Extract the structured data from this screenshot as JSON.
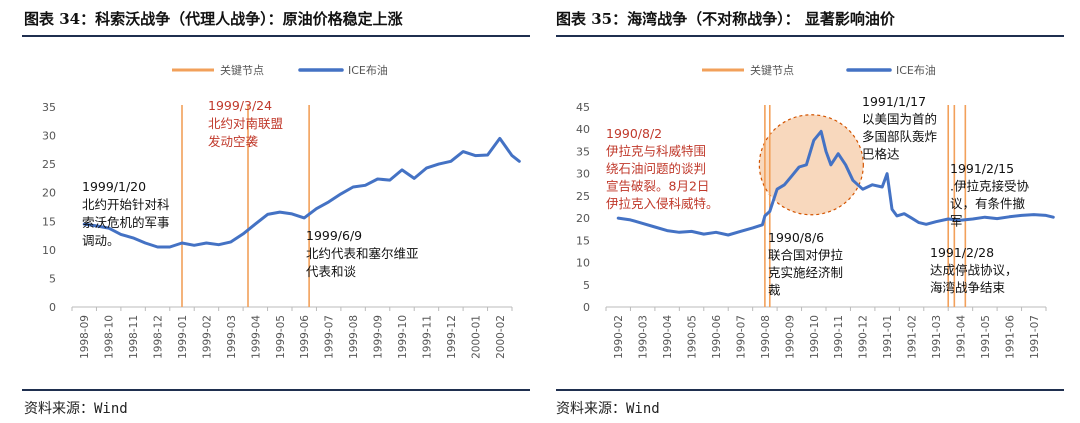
{
  "figures": [
    {
      "title": "图表 34：科索沃战争（代理人战争）：原油价格稳定上涨",
      "source": "资料来源：Wind"
    },
    {
      "title": "图表 35：海湾战争（不对称战争）： 显著影响油价",
      "source": "资料来源：Wind"
    }
  ],
  "colors": {
    "key_node": "#f2a05a",
    "ice_line": "#4472c4",
    "annotation_red": "#c0392b",
    "circle_fill": "#f5cba7",
    "circle_stroke": "#d35400",
    "rule": "#1f2f4f"
  },
  "chart_data": [
    {
      "type": "line",
      "legend": [
        "关键节点",
        "ICE布油"
      ],
      "legend_position": "top-center",
      "x_ticks": [
        "1998-09",
        "1998-10",
        "1998-11",
        "1998-12",
        "1999-01",
        "1999-02",
        "1999-03",
        "1999-04",
        "1999-05",
        "1999-06",
        "1999-07",
        "1999-08",
        "1999-09",
        "1999-10",
        "1999-11",
        "1999-12",
        "2000-01",
        "2000-02"
      ],
      "ylim": [
        0,
        35
      ],
      "y_ticks": [
        0,
        5,
        10,
        15,
        20,
        25,
        30,
        35
      ],
      "grid": false,
      "series": [
        {
          "name": "ICE布油",
          "x": [
            0,
            0.5,
            1,
            1.5,
            2,
            2.5,
            3,
            3.5,
            4,
            4.5,
            5,
            5.5,
            6,
            6.5,
            7,
            7.5,
            8,
            8.5,
            9,
            9.5,
            10,
            10.5,
            11,
            11.5,
            12,
            12.5,
            13,
            13.5,
            14,
            14.5,
            15,
            15.5,
            16,
            16.5,
            17,
            17.5,
            17.8
          ],
          "values": [
            14.5,
            14.2,
            13.8,
            12.7,
            12.1,
            11.2,
            10.5,
            10.5,
            11.2,
            10.8,
            11.2,
            10.9,
            11.4,
            12.8,
            14.5,
            16.2,
            16.6,
            16.3,
            15.6,
            17.2,
            18.4,
            19.8,
            21.0,
            21.3,
            22.4,
            22.2,
            24.0,
            22.5,
            24.3,
            25.0,
            25.5,
            27.2,
            26.5,
            26.6,
            29.5,
            26.5,
            25.5
          ]
        }
      ],
      "key_nodes": [
        4.0,
        6.7,
        9.2
      ],
      "annotations": [
        {
          "lines": [
            "1999/3/24",
            "北约对南联盟",
            "发动空袭"
          ],
          "color": "red"
        },
        {
          "lines": [
            "1999/1/20",
            "北约开始针对科",
            "索沃危机的军事",
            "调动。"
          ],
          "color": "black"
        },
        {
          "lines": [
            "1999/6/9",
            "北约代表和塞尔维亚",
            "代表和谈"
          ],
          "color": "black"
        }
      ]
    },
    {
      "type": "line",
      "legend": [
        "关键节点",
        "ICE布油"
      ],
      "legend_position": "top-center",
      "x_ticks": [
        "1990-02",
        "1990-03",
        "1990-04",
        "1990-05",
        "1990-06",
        "1990-07",
        "1990-08",
        "1990-09",
        "1990-10",
        "1990-11",
        "1990-12",
        "1991-01",
        "1991-02",
        "1991-03",
        "1991-04",
        "1991-05",
        "1991-06",
        "1991-07"
      ],
      "ylim": [
        0,
        45
      ],
      "y_ticks": [
        0,
        5,
        10,
        15,
        20,
        25,
        30,
        35,
        40,
        45
      ],
      "grid": false,
      "series": [
        {
          "name": "ICE布油",
          "x": [
            0,
            0.5,
            1,
            1.5,
            2,
            2.5,
            3,
            3.5,
            4,
            4.5,
            5,
            5.5,
            5.9,
            6.0,
            6.2,
            6.5,
            6.8,
            7.1,
            7.4,
            7.7,
            8.0,
            8.3,
            8.5,
            8.7,
            9.0,
            9.3,
            9.6,
            10.0,
            10.4,
            10.8,
            11.0,
            11.2,
            11.4,
            11.7,
            12.0,
            12.3,
            12.6,
            13.0,
            13.5,
            14,
            14.5,
            15,
            15.5,
            16,
            16.5,
            17,
            17.5,
            17.8
          ],
          "values": [
            20.0,
            19.6,
            18.8,
            18.0,
            17.2,
            16.8,
            17.0,
            16.4,
            16.8,
            16.2,
            17.0,
            17.8,
            18.5,
            20.5,
            21.5,
            26.5,
            27.5,
            29.5,
            31.5,
            32.0,
            37.5,
            39.5,
            35.0,
            32.0,
            34.5,
            32.0,
            28.5,
            26.5,
            27.5,
            27.0,
            30.0,
            22.0,
            20.5,
            21.0,
            20.0,
            19.0,
            18.6,
            19.2,
            19.8,
            19.5,
            19.8,
            20.2,
            19.9,
            20.3,
            20.6,
            20.8,
            20.6,
            20.2
          ]
        }
      ],
      "key_nodes": [
        6.0,
        6.2,
        13.5,
        13.75,
        14.2
      ],
      "highlight_circle": {
        "center": [
          7.9,
          32.0
        ]
      },
      "annotations": [
        {
          "lines": [
            "1990/8/2",
            "伊拉克与科威特围",
            "绕石油问题的谈判",
            "宣告破裂。8月2日",
            "伊拉克入侵科威特。"
          ],
          "color": "red"
        },
        {
          "lines": [
            "1990/8/6",
            "联合国对伊拉",
            "克实施经济制",
            "裁"
          ],
          "color": "black"
        },
        {
          "lines": [
            "1991/1/17",
            "以美国为首的",
            "多国部队轰炸",
            "巴格达"
          ],
          "color": "black"
        },
        {
          "lines": [
            "1991/2/15",
            ".伊拉克接受协",
            "议，有条件撤",
            "军"
          ],
          "color": "black"
        },
        {
          "lines": [
            "1991/2/28",
            "达成停战协议，",
            "海湾战争结束"
          ],
          "color": "black"
        }
      ]
    }
  ]
}
